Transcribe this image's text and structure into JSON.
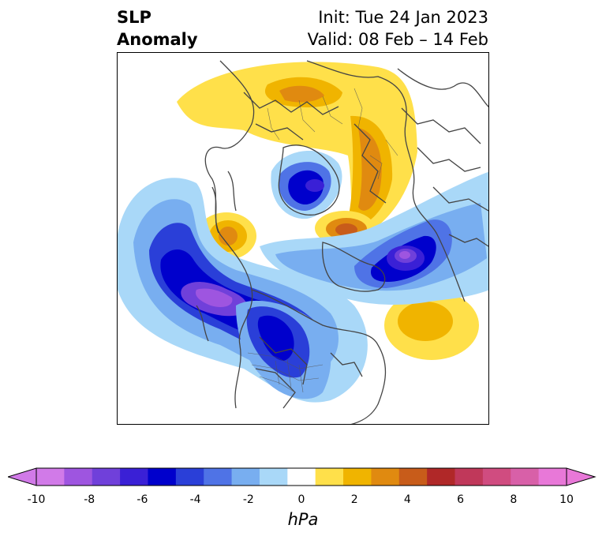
{
  "title": {
    "left_line1": "SLP",
    "left_line2": "Anomaly",
    "right_line1": "Init: Tue 24 Jan 2023",
    "right_line2": "Valid: 08 Feb – 14 Feb"
  },
  "colorbar": {
    "unit_label": "hPa",
    "extend": "both",
    "min": -10,
    "max": 10,
    "ticks": [
      "-10",
      "-8",
      "-6",
      "-4",
      "-2",
      "0",
      "2",
      "4",
      "6",
      "8",
      "10"
    ],
    "colors": [
      "#d17ae8",
      "#9e55e0",
      "#7040da",
      "#3a20d6",
      "#0000cc",
      "#2a3fd8",
      "#4f73e6",
      "#78aef0",
      "#a9d8f8",
      "#ffffff",
      "#ffe04a",
      "#f0b400",
      "#e08a10",
      "#c85c1a",
      "#b02828",
      "#c0385a",
      "#d04c80",
      "#d860a8",
      "#e878d8"
    ]
  },
  "map": {
    "projection": "polar stereographic",
    "region": "Northern Hemisphere",
    "colors": {
      "land_boundaries": "#444444",
      "frame": "#000000"
    }
  }
}
